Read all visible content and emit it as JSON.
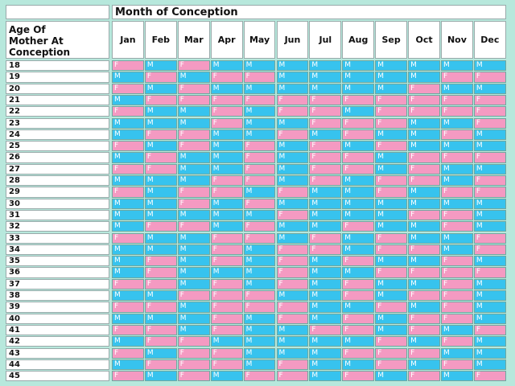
{
  "title": "Month of Conception",
  "age_header": "Age Of\nMother At\nConception",
  "months": [
    "Jan",
    "Feb",
    "Mar",
    "Apr",
    "May",
    "Jun",
    "Jul",
    "Aug",
    "Sep",
    "Oct",
    "Nov",
    "Dec"
  ],
  "colors": {
    "M": "#37c3ee",
    "F": "#f49ac2"
  },
  "rows": [
    {
      "age": "18",
      "cells": [
        "F",
        "M",
        "F",
        "M",
        "M",
        "M",
        "M",
        "M",
        "M",
        "M",
        "M",
        "M"
      ]
    },
    {
      "age": "19",
      "cells": [
        "M",
        "F",
        "M",
        "F",
        "F",
        "M",
        "M",
        "M",
        "M",
        "M",
        "F",
        "F"
      ]
    },
    {
      "age": "20",
      "cells": [
        "F",
        "M",
        "F",
        "M",
        "M",
        "M",
        "M",
        "M",
        "M",
        "F",
        "M",
        "M"
      ]
    },
    {
      "age": "21",
      "cells": [
        "M",
        "F",
        "F",
        "F",
        "F",
        "F",
        "F",
        "F",
        "F",
        "F",
        "F",
        "F"
      ]
    },
    {
      "age": "22",
      "cells": [
        "F",
        "M",
        "M",
        "F",
        "M",
        "F",
        "F",
        "M",
        "F",
        "F",
        "F",
        "F"
      ]
    },
    {
      "age": "23",
      "cells": [
        "M",
        "M",
        "M",
        "F",
        "M",
        "M",
        "F",
        "F",
        "F",
        "M",
        "M",
        "F"
      ]
    },
    {
      "age": "24",
      "cells": [
        "M",
        "F",
        "F",
        "M",
        "M",
        "F",
        "M",
        "F",
        "M",
        "M",
        "F",
        "M"
      ]
    },
    {
      "age": "25",
      "cells": [
        "F",
        "M",
        "F",
        "M",
        "F",
        "M",
        "F",
        "M",
        "F",
        "M",
        "M",
        "M"
      ]
    },
    {
      "age": "26",
      "cells": [
        "M",
        "F",
        "M",
        "M",
        "F",
        "M",
        "F",
        "F",
        "M",
        "F",
        "F",
        "F"
      ]
    },
    {
      "age": "27",
      "cells": [
        "F",
        "F",
        "M",
        "M",
        "F",
        "M",
        "F",
        "F",
        "M",
        "F",
        "M",
        "M"
      ]
    },
    {
      "age": "28",
      "cells": [
        "M",
        "M",
        "M",
        "F",
        "F",
        "M",
        "F",
        "M",
        "F",
        "F",
        "M",
        "F"
      ]
    },
    {
      "age": "29",
      "cells": [
        "F",
        "M",
        "F",
        "F",
        "M",
        "F",
        "M",
        "M",
        "F",
        "M",
        "F",
        "F"
      ]
    },
    {
      "age": "30",
      "cells": [
        "M",
        "M",
        "F",
        "M",
        "F",
        "M",
        "M",
        "M",
        "M",
        "M",
        "M",
        "M"
      ]
    },
    {
      "age": "31",
      "cells": [
        "M",
        "M",
        "M",
        "M",
        "M",
        "F",
        "M",
        "M",
        "M",
        "F",
        "F",
        "M"
      ]
    },
    {
      "age": "32",
      "cells": [
        "M",
        "F",
        "F",
        "M",
        "F",
        "M",
        "M",
        "F",
        "M",
        "M",
        "F",
        "M"
      ]
    },
    {
      "age": "33",
      "cells": [
        "F",
        "M",
        "M",
        "F",
        "F",
        "M",
        "F",
        "M",
        "F",
        "M",
        "M",
        "F"
      ]
    },
    {
      "age": "34",
      "cells": [
        "M",
        "M",
        "M",
        "F",
        "M",
        "F",
        "F",
        "M",
        "F",
        "F",
        "M",
        "F"
      ]
    },
    {
      "age": "35",
      "cells": [
        "M",
        "F",
        "M",
        "F",
        "M",
        "F",
        "M",
        "F",
        "M",
        "M",
        "F",
        "M"
      ]
    },
    {
      "age": "36",
      "cells": [
        "M",
        "F",
        "M",
        "M",
        "M",
        "F",
        "M",
        "M",
        "F",
        "F",
        "F",
        "F"
      ]
    },
    {
      "age": "37",
      "cells": [
        "F",
        "F",
        "M",
        "F",
        "M",
        "F",
        "M",
        "F",
        "M",
        "M",
        "F",
        "M"
      ]
    },
    {
      "age": "38",
      "cells": [
        "M",
        "M",
        "F",
        "F",
        "F",
        "M",
        "M",
        "F",
        "M",
        "F",
        "F",
        "M"
      ]
    },
    {
      "age": "39",
      "cells": [
        "F",
        "F",
        "M",
        "F",
        "F",
        "F",
        "M",
        "M",
        "F",
        "M",
        "F",
        "M"
      ]
    },
    {
      "age": "40",
      "cells": [
        "M",
        "M",
        "M",
        "F",
        "M",
        "F",
        "M",
        "F",
        "M",
        "F",
        "F",
        "M"
      ]
    },
    {
      "age": "41",
      "cells": [
        "F",
        "F",
        "M",
        "F",
        "M",
        "M",
        "F",
        "F",
        "M",
        "F",
        "M",
        "F"
      ]
    },
    {
      "age": "42",
      "cells": [
        "M",
        "F",
        "F",
        "M",
        "M",
        "M",
        "M",
        "M",
        "F",
        "M",
        "F",
        "M"
      ]
    },
    {
      "age": "43",
      "cells": [
        "F",
        "M",
        "F",
        "F",
        "M",
        "M",
        "M",
        "F",
        "F",
        "F",
        "M",
        "M"
      ]
    },
    {
      "age": "44",
      "cells": [
        "M",
        "F",
        "F",
        "F",
        "M",
        "F",
        "M",
        "M",
        "F",
        "M",
        "F",
        "M"
      ]
    },
    {
      "age": "45",
      "cells": [
        "F",
        "M",
        "F",
        "M",
        "F",
        "F",
        "M",
        "F",
        "M",
        "F",
        "M",
        "F"
      ]
    }
  ]
}
